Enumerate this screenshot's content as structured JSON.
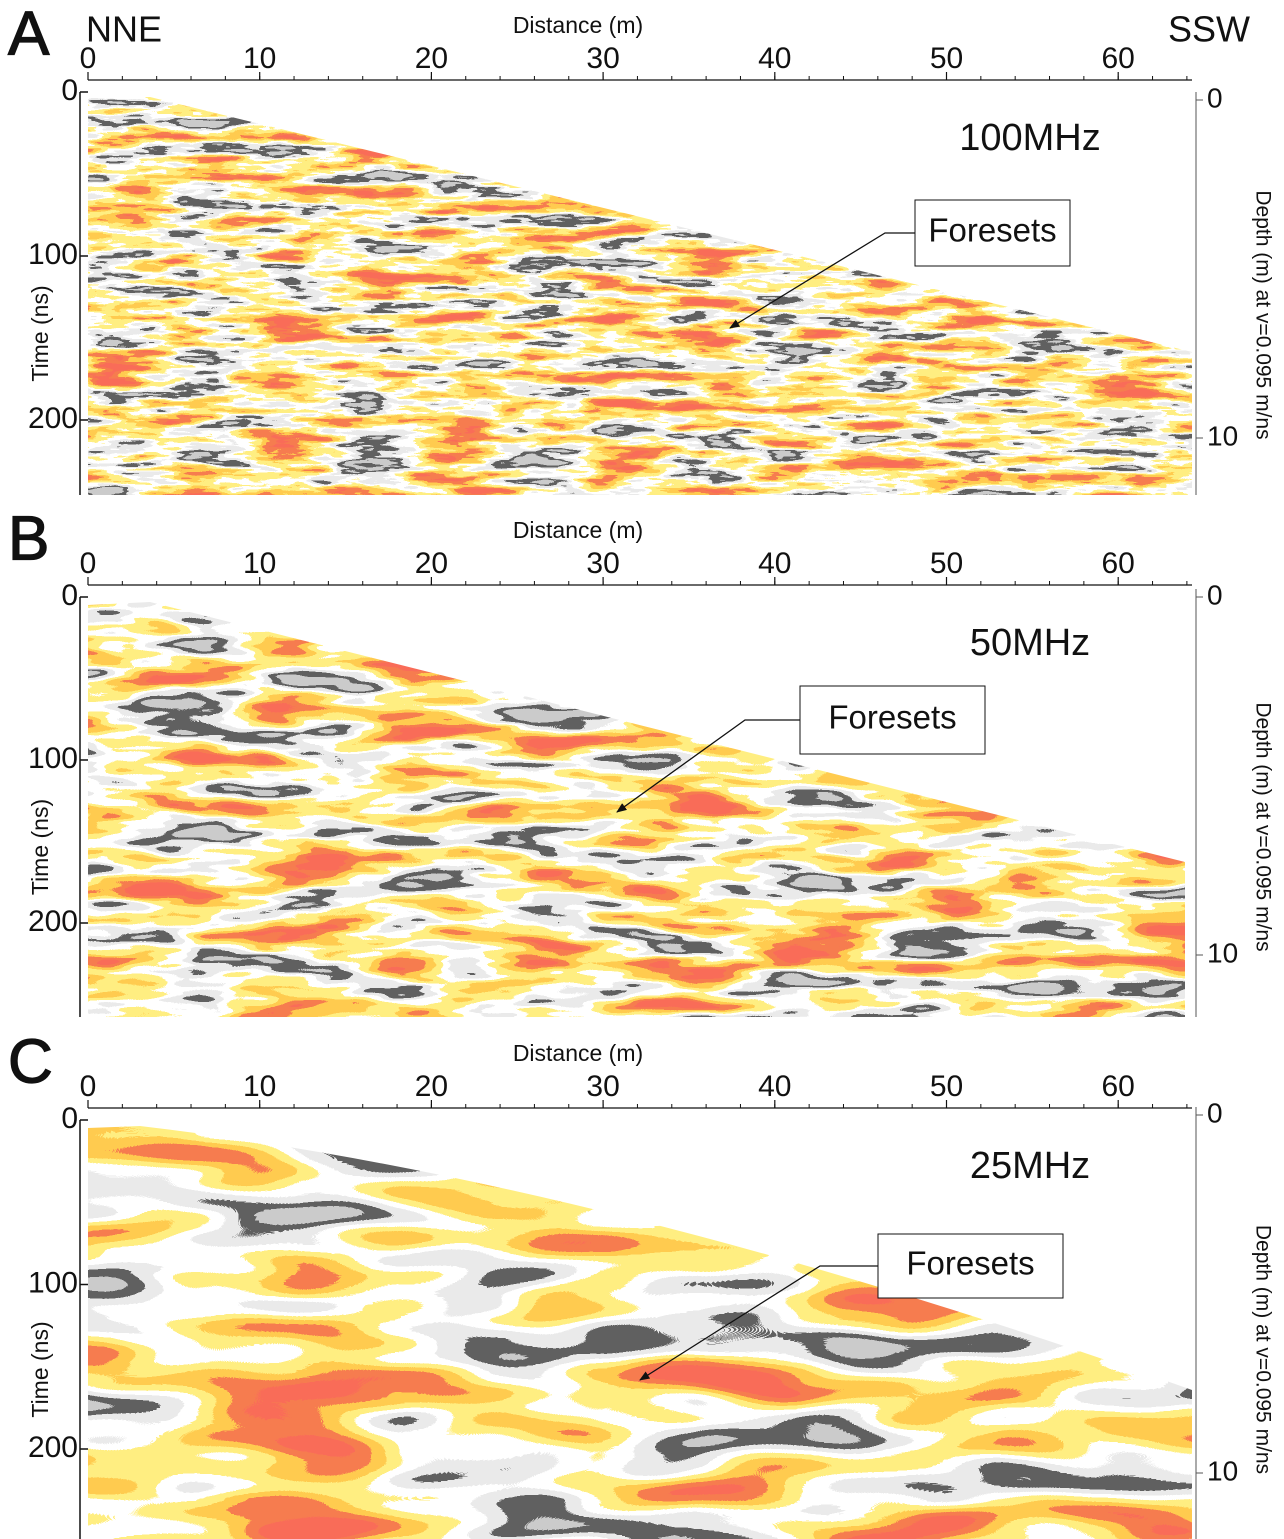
{
  "panels": [
    {
      "letter": "A",
      "left_label": "NNE",
      "right_label": "SSW",
      "x_axis_title": "Distance (m)",
      "x_ticks": [
        0,
        10,
        20,
        30,
        40,
        50,
        60
      ],
      "y_axis_title": "Time (ns)",
      "y_ticks": [
        0,
        100,
        200
      ],
      "y2_axis_title": "Depth (m) at v=0.095 m/ns",
      "y2_ticks": [
        0,
        10
      ],
      "frequency": "100MHz",
      "annotation": "Foresets"
    },
    {
      "letter": "B",
      "x_axis_title": "Distance (m)",
      "x_ticks": [
        0,
        10,
        20,
        30,
        40,
        50,
        60
      ],
      "y_axis_title": "Time (ns)",
      "y_ticks": [
        0,
        100,
        200
      ],
      "y2_axis_title": "Depth (m) at v=0.095 m/ns",
      "y2_ticks": [
        0,
        10
      ],
      "frequency": "50MHz",
      "annotation": "Foresets"
    },
    {
      "letter": "C",
      "x_axis_title": "Distance (m)",
      "x_ticks": [
        0,
        10,
        20,
        30,
        40,
        50,
        60
      ],
      "y_axis_title": "Time (ns)",
      "y_ticks": [
        0,
        100,
        200
      ],
      "y2_axis_title": "Depth (m) at v=0.095 m/ns",
      "y2_ticks": [
        0,
        10
      ],
      "frequency": "25MHz",
      "annotation": "Foresets"
    }
  ]
}
